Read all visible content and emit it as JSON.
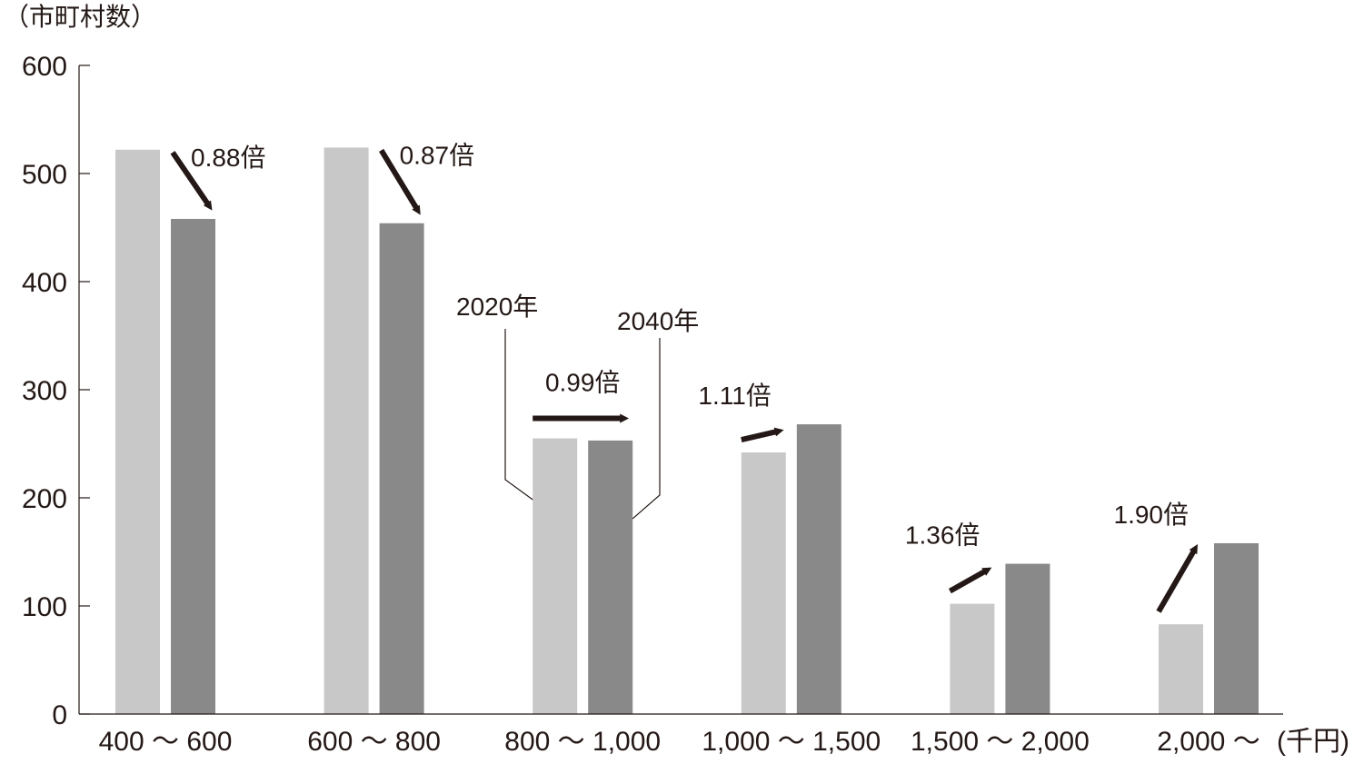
{
  "chart_data": {
    "type": "bar",
    "ylabel": "（市町村数）",
    "xunit": "(千円)",
    "ylim": [
      0,
      600
    ],
    "yticks": [
      0,
      100,
      200,
      300,
      400,
      500,
      600
    ],
    "categories": [
      "400 ～ 600",
      "600 ～ 800",
      "800 ～ 1,000",
      "1,000 ～ 1,500",
      "1,500 ～ 2,000",
      "2,000 ～"
    ],
    "series": [
      {
        "name": "2020年",
        "values": [
          522,
          524,
          255,
          242,
          102,
          83
        ],
        "color": "#c8c8c8"
      },
      {
        "name": "2040年",
        "values": [
          458,
          454,
          253,
          268,
          139,
          158
        ],
        "color": "#898989"
      }
    ],
    "ratios": [
      "0.88倍",
      "0.87倍",
      "0.99倍",
      "1.11倍",
      "1.36倍",
      "1.90倍"
    ],
    "arrow_color": "#231815",
    "grid": false,
    "legend": "callout labels on the 800 ～ 1,000 group"
  }
}
